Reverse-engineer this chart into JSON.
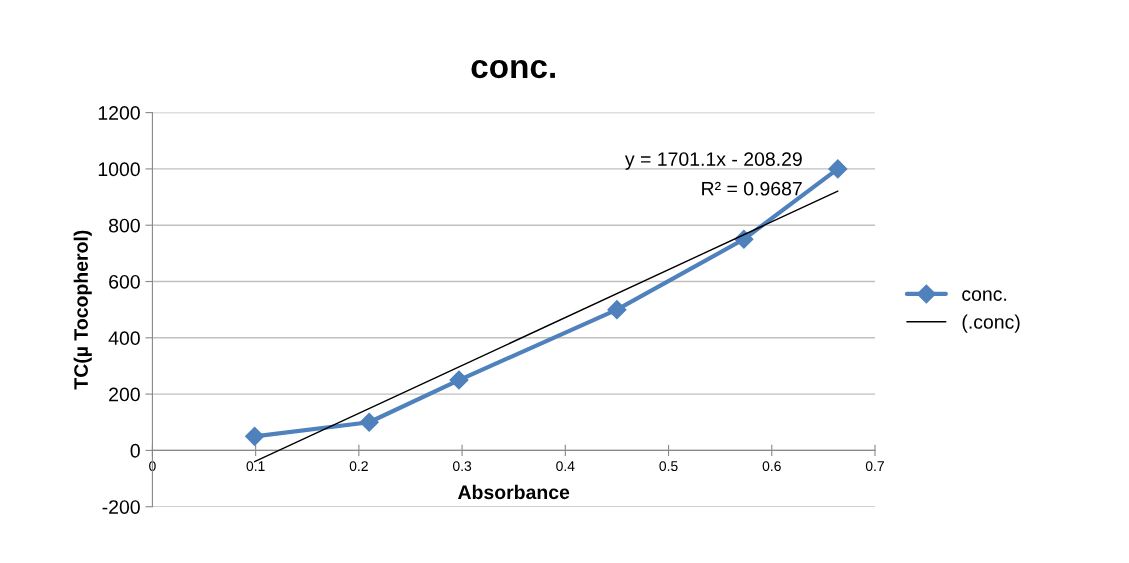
{
  "chart_data": {
    "type": "line",
    "title": "conc.",
    "xlabel": "Absorbance",
    "ylabel": "TC(µ Tocopherol)",
    "series": [
      {
        "name": "conc.",
        "color": "#4f81bd",
        "x": [
          0.099,
          0.21,
          0.297,
          0.45,
          0.573,
          0.664
        ],
        "values": [
          50,
          100,
          250,
          500,
          750,
          1000
        ],
        "marker": "diamond"
      },
      {
        "name": "(.conc)",
        "color": "#000000",
        "type": "line",
        "x": [
          0.099,
          0.664
        ],
        "values": [
          -40,
          921
        ],
        "marker": "none"
      }
    ],
    "annotations": [
      "y = 1701.1x - 208.29",
      "R² = 0.9687"
    ],
    "xlim": [
      0,
      0.7
    ],
    "xticks": [
      0,
      0.1,
      0.2,
      0.3,
      0.4,
      0.5,
      0.6,
      0.7
    ],
    "ylim": [
      -200,
      1200
    ],
    "yticks": [
      -200,
      0,
      200,
      400,
      600,
      800,
      1000,
      1200
    ],
    "grid": "y",
    "legend": "right"
  }
}
